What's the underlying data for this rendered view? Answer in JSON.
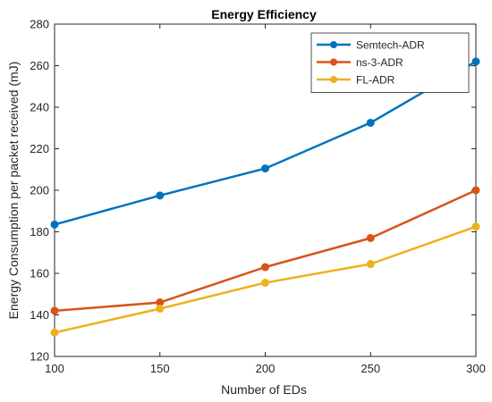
{
  "chart_data": {
    "type": "line",
    "title": "Energy Efficiency",
    "xlabel": "Number of EDs",
    "ylabel": "Energy Consumption per packet received (mJ)",
    "x": [
      100,
      150,
      200,
      250,
      300
    ],
    "xlim": [
      100,
      300
    ],
    "ylim": [
      120,
      280
    ],
    "xticks": [
      100,
      150,
      200,
      250,
      300
    ],
    "yticks": [
      120,
      140,
      160,
      180,
      200,
      220,
      240,
      260,
      280
    ],
    "grid": false,
    "legend_position": "top-right",
    "series": [
      {
        "name": "Semtech-ADR",
        "color": "#0072BD",
        "values": [
          183.5,
          197.5,
          210.5,
          232.5,
          262.0
        ]
      },
      {
        "name": "ns-3-ADR",
        "color": "#D95319",
        "values": [
          142.0,
          146.0,
          163.0,
          177.0,
          200.0
        ]
      },
      {
        "name": "FL-ADR",
        "color": "#EDB120",
        "values": [
          131.5,
          143.0,
          155.5,
          164.5,
          182.5
        ]
      }
    ]
  }
}
